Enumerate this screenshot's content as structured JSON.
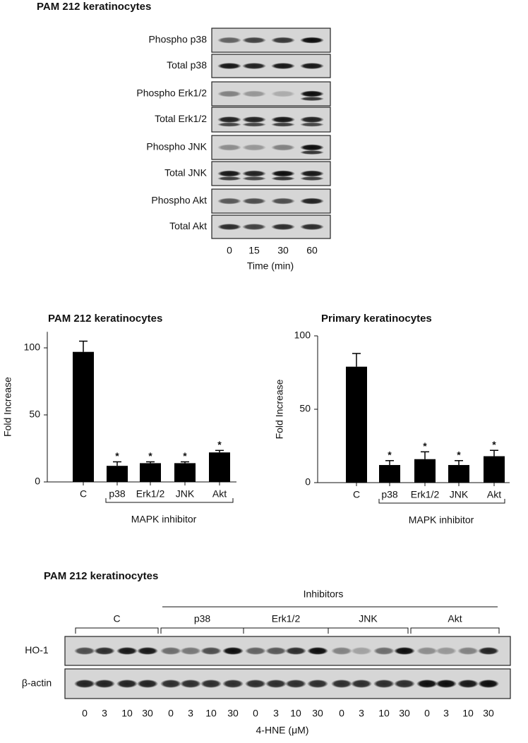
{
  "blot_a": {
    "title": "PAM 212 keratinocytes",
    "rows": [
      "Phospho p38",
      "Total p38",
      "Phospho Erk1/2",
      "Total Erk1/2",
      "Phospho JNK",
      "Total JNK",
      "Phospho Akt",
      "Total Akt"
    ],
    "lanes": [
      "0",
      "15",
      "30",
      "60"
    ],
    "x_label": "Time (min)"
  },
  "chart_data": [
    {
      "type": "bar",
      "title": "PAM 212 keratinocytes",
      "y_label": "Fold Increase",
      "categories": [
        "C",
        "p38",
        "Erk1/2",
        "JNK",
        "Akt"
      ],
      "values": [
        97,
        12,
        14,
        14,
        22
      ],
      "errors": [
        8,
        3,
        1,
        1,
        1.5
      ],
      "significance": [
        null,
        "*",
        "*",
        "*",
        "*"
      ],
      "group_label": "MAPK inhibitor",
      "color": "#000000",
      "ylim": [
        0,
        112
      ],
      "yticks": [
        0,
        50,
        100
      ]
    },
    {
      "type": "bar",
      "title": "Primary keratinocytes",
      "y_label": "Fold Increase",
      "categories": [
        "C",
        "p38",
        "Erk1/2",
        "JNK",
        "Akt"
      ],
      "values": [
        79,
        12,
        16,
        12,
        18
      ],
      "errors": [
        9,
        3,
        5,
        3,
        4
      ],
      "significance": [
        null,
        "*",
        "*",
        "*",
        "*"
      ],
      "group_label": "MAPK inhibitor",
      "color": "#000000",
      "ylim": [
        0,
        100
      ],
      "yticks": [
        0,
        50,
        100
      ]
    }
  ],
  "blot_c": {
    "title": "PAM 212 keratinocytes",
    "inhibitors_label": "Inhibitors",
    "groups": [
      "C",
      "p38",
      "Erk1/2",
      "JNK",
      "Akt"
    ],
    "rows": [
      "HO-1",
      "β-actin"
    ],
    "lanes": [
      "0",
      "3",
      "10",
      "30",
      "0",
      "3",
      "10",
      "30",
      "0",
      "3",
      "10",
      "30",
      "0",
      "3",
      "10",
      "30",
      "0",
      "3",
      "10",
      "30"
    ],
    "x_label": "4-HNE (μM)"
  }
}
